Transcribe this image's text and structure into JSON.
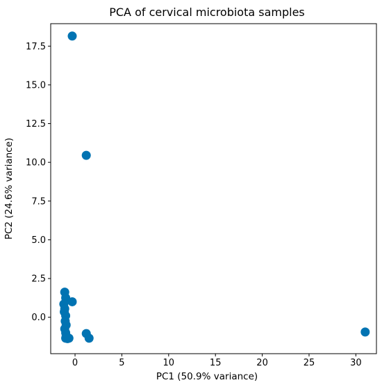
{
  "chart_data": {
    "type": "scatter",
    "title": "PCA of cervical microbiota samples",
    "xlabel": "PC1 (50.9% variance)",
    "ylabel": "PC2 (24.6% variance)",
    "xlim": [
      -2.6,
      32.2
    ],
    "ylim": [
      -2.35,
      18.95
    ],
    "xticks": [
      0,
      5,
      10,
      15,
      20,
      25,
      30
    ],
    "xtick_labels": [
      "0",
      "5",
      "10",
      "15",
      "20",
      "25",
      "30"
    ],
    "yticks": [
      0.0,
      2.5,
      5.0,
      7.5,
      10.0,
      12.5,
      15.0,
      17.5
    ],
    "ytick_labels": [
      "0.0",
      "2.5",
      "5.0",
      "7.5",
      "10.0",
      "12.5",
      "15.0",
      "17.5"
    ],
    "grid": false,
    "marker_color": "#0173b2",
    "points": [
      {
        "x": -0.3,
        "y": 18.15
      },
      {
        "x": 1.2,
        "y": 10.45
      },
      {
        "x": -1.1,
        "y": 1.62
      },
      {
        "x": -1.0,
        "y": 1.25
      },
      {
        "x": -0.3,
        "y": 1.0
      },
      {
        "x": -1.2,
        "y": 0.85
      },
      {
        "x": -1.1,
        "y": 0.55
      },
      {
        "x": -1.15,
        "y": 0.35
      },
      {
        "x": -1.0,
        "y": 0.1
      },
      {
        "x": -1.05,
        "y": -0.25
      },
      {
        "x": -0.95,
        "y": -0.5
      },
      {
        "x": -1.1,
        "y": -0.75
      },
      {
        "x": -1.0,
        "y": -1.0
      },
      {
        "x": -0.95,
        "y": -1.2
      },
      {
        "x": -1.0,
        "y": -1.35
      },
      {
        "x": -0.8,
        "y": -1.38
      },
      {
        "x": -0.65,
        "y": -1.35
      },
      {
        "x": 1.2,
        "y": -1.05
      },
      {
        "x": 1.5,
        "y": -1.35
      },
      {
        "x": 31.0,
        "y": -0.95
      }
    ]
  }
}
